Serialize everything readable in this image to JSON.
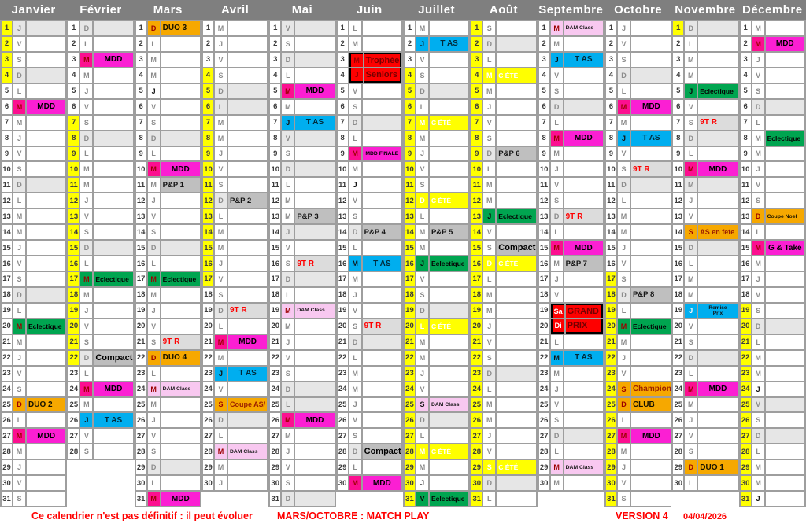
{
  "weekday_letters": [
    "L",
    "M",
    "M",
    "J",
    "V",
    "S",
    "D"
  ],
  "colors": {
    "header_bg": "#7f7f7f",
    "header_fg": "#ffffff",
    "grid_border": "#9e9e9e",
    "cell_bg": "#ffffff",
    "sunday_bg": "#e6e6e6",
    "holiday_number_bg": "#ffff00",
    "number_fg": "#3c3c3c",
    "letter_fg": "#8c8c8c",
    "footer_fg": "#ff0000"
  },
  "event_styles": {
    "mdd": {
      "bg": "#fb1fd3",
      "fg": "#000000",
      "lbg": "#fc0f90",
      "lfg": "#9c0000"
    },
    "mddf": {
      "bg": "#fb1fd3",
      "fg": "#000000",
      "lbg": "#fc0f90",
      "lfg": "#9c0000"
    },
    "gtake": {
      "bg": "#fb1fd3",
      "fg": "#000000",
      "lbg": "#fc0f90",
      "lfg": "#9c0000"
    },
    "tas": {
      "bg": "#00aeef",
      "fg": "#002a3a",
      "lbg": "#00aeef",
      "lfg": "#111111"
    },
    "remise": {
      "bg": "#00aeef",
      "fg": "#101010",
      "lbg": "#00aeef",
      "lfg": "#f5f5f5"
    },
    "ecl": {
      "bg": "#00a550",
      "fg": "#050505",
      "lbg": "#00a550",
      "lfg": "#9c0000"
    },
    "duo": {
      "bg": "#f6a800",
      "fg": "#161200",
      "lbg": "#f6a800",
      "lfg": "#9c0000"
    },
    "cnoel": {
      "bg": "#f6a800",
      "fg": "#161200",
      "lbg": "#f6a800",
      "lfg": "#9c0000"
    },
    "club": {
      "bg": "#f6a800",
      "fg": "#161200",
      "lbg": "#f6a800",
      "lfg": "#9c0000"
    },
    "champ": {
      "bg": "#f6a800",
      "fg": "#9c2000",
      "lbg": "#f6a800",
      "lfg": "#9c0000"
    },
    "asfete": {
      "bg": "#f6a800",
      "fg": "#9c2000",
      "lbg": "#f6a800",
      "lfg": "#9c0000"
    },
    "coupeas": {
      "bg": "#f6a800",
      "fg": "#9c2000",
      "lbg": "#f6a800",
      "lfg": "#9c0000"
    },
    "pnp": {
      "bg": "#bfbfbf",
      "fg": "#161616"
    },
    "cmp": {
      "bg": "#bdbdbd",
      "fg": "#000000"
    },
    "ntr": {
      "bg": "#dcdcdc",
      "fg": "#ff0000"
    },
    "dam": {
      "bg": "#f8c8f0",
      "fg": "#1a1a1a",
      "lbg": "#f8c8f0",
      "lfg": "#9c0000"
    },
    "cete": {
      "bg": "#ffff00",
      "fg": "#ffffff",
      "lbg": "#ffff00",
      "lfg": "#ffffff"
    },
    "red": {
      "bg": "#fe0000",
      "fg": "#750000",
      "lbg": "#fe0000",
      "lfg": "#9c0000"
    }
  },
  "months": [
    {
      "name": "Janvier",
      "days": 31,
      "start": 3,
      "yellow": [
        [
          1,
          4
        ]
      ],
      "gray_days": [
        1
      ],
      "bold_letters": [],
      "events": [
        {
          "d": 6,
          "t": "MDD",
          "s": "mdd"
        },
        {
          "d": 20,
          "t": "Eclectique",
          "s": "ecl"
        },
        {
          "d": 25,
          "t": "DUO 2",
          "s": "duo"
        },
        {
          "d": 27,
          "t": "MDD",
          "s": "mdd"
        }
      ]
    },
    {
      "name": "Février",
      "days": 28,
      "start": 6,
      "yellow": [
        [
          7,
          22
        ]
      ],
      "gray_days": [],
      "bold_letters": [],
      "events": [
        {
          "d": 3,
          "t": "MDD",
          "s": "mdd"
        },
        {
          "d": 17,
          "t": "Eclectique",
          "s": "ecl"
        },
        {
          "d": 22,
          "t": "Compact",
          "s": "cmp"
        },
        {
          "d": 24,
          "t": "MDD",
          "s": "mdd"
        },
        {
          "d": 26,
          "t": "T AS",
          "s": "tas"
        }
      ]
    },
    {
      "name": "Mars",
      "days": 31,
      "start": 6,
      "yellow": [],
      "gray_days": [],
      "bold_letters": [
        5
      ],
      "events": [
        {
          "d": 1,
          "t": "DUO 3",
          "s": "duo"
        },
        {
          "d": 10,
          "t": "MDD",
          "s": "mdd"
        },
        {
          "d": 11,
          "t": "P&P 1",
          "s": "pnp"
        },
        {
          "d": 17,
          "t": "Eclectique",
          "s": "ecl"
        },
        {
          "d": 21,
          "t": "9T R",
          "s": "ntr"
        },
        {
          "d": 22,
          "t": "DUO 4",
          "s": "duo"
        },
        {
          "d": 24,
          "t": "DAM Class",
          "s": "dam"
        },
        {
          "d": 31,
          "t": "MDD",
          "s": "mdd"
        }
      ]
    },
    {
      "name": "Avril",
      "days": 30,
      "start": 2,
      "yellow": [
        [
          4,
          17
        ]
      ],
      "gray_days": [
        6
      ],
      "bold_letters": [],
      "events": [
        {
          "d": 12,
          "t": "P&P 2",
          "s": "pnp"
        },
        {
          "d": 19,
          "t": "9T R",
          "s": "ntr"
        },
        {
          "d": 21,
          "t": "MDD",
          "s": "mdd"
        },
        {
          "d": 23,
          "t": "T AS",
          "s": "tas"
        },
        {
          "d": 25,
          "t": "Coupe AS/",
          "s": "coupeas"
        },
        {
          "d": 28,
          "t": "DAM Class",
          "s": "dam"
        }
      ]
    },
    {
      "name": "Mai",
      "days": 31,
      "start": 4,
      "yellow": [],
      "gray_days": [
        1,
        8,
        14,
        25
      ],
      "bold_letters": [],
      "events": [
        {
          "d": 5,
          "t": "MDD",
          "s": "mdd"
        },
        {
          "d": 7,
          "t": "T AS",
          "s": "tas"
        },
        {
          "d": 13,
          "t": "P&P 3",
          "s": "pnp"
        },
        {
          "d": 16,
          "t": "9T R",
          "s": "ntr"
        },
        {
          "d": 19,
          "t": "DAM Class",
          "s": "dam"
        },
        {
          "d": 26,
          "t": "MDD",
          "s": "mdd"
        }
      ]
    },
    {
      "name": "Juin",
      "days": 30,
      "start": 0,
      "yellow": [],
      "gray_days": [],
      "bold_letters": [
        11
      ],
      "events": [
        {
          "d": 3,
          "t": "Trophée",
          "s": "red",
          "blk": "top"
        },
        {
          "d": 4,
          "t": "Seniors",
          "s": "red",
          "blk": "bottom"
        },
        {
          "d": 9,
          "t": "MDD FINALE",
          "s": "mddf"
        },
        {
          "d": 14,
          "t": "P&P 4",
          "s": "pnp"
        },
        {
          "d": 16,
          "t": "T AS",
          "s": "tas"
        },
        {
          "d": 20,
          "t": "9T R",
          "s": "ntr"
        },
        {
          "d": 28,
          "t": "Compact",
          "s": "cmp"
        },
        {
          "d": 30,
          "t": "MDD",
          "s": "mdd"
        }
      ]
    },
    {
      "name": "Juillet",
      "days": 31,
      "start": 2,
      "yellow": [
        [
          4,
          31
        ]
      ],
      "gray_days": [],
      "bold_letters": [
        30
      ],
      "events": [
        {
          "d": 2,
          "t": "T AS",
          "s": "tas"
        },
        {
          "d": 7,
          "t": "C ÉTÉ",
          "s": "cete"
        },
        {
          "d": 12,
          "t": "C ÉTÉ",
          "s": "cete"
        },
        {
          "d": 14,
          "t": "P&P 5",
          "s": "pnp"
        },
        {
          "d": 16,
          "t": "Eclectique",
          "s": "ecl",
          "lfg": "#0a0a0a"
        },
        {
          "d": 20,
          "t": "C ÉTÉ",
          "s": "cete"
        },
        {
          "d": 25,
          "t": "DAM Class",
          "s": "dam",
          "lfg": "#1a1a1a"
        },
        {
          "d": 28,
          "t": "C ÉTÉ",
          "s": "cete"
        },
        {
          "d": 31,
          "t": "Eclectique",
          "s": "ecl",
          "lfg": "#0a0a0a"
        }
      ]
    },
    {
      "name": "Août",
      "days": 31,
      "start": 5,
      "yellow": [
        [
          1,
          31
        ]
      ],
      "gray_days": [],
      "bold_letters": [],
      "events": [
        {
          "d": 4,
          "t": "C ÉTÉ",
          "s": "cete"
        },
        {
          "d": 9,
          "t": "P&P 6",
          "s": "pnp"
        },
        {
          "d": 13,
          "t": "Eclectique",
          "s": "ecl",
          "lfg": "#0a0a0a"
        },
        {
          "d": 15,
          "t": "Compact",
          "s": "cmp"
        },
        {
          "d": 16,
          "t": "C ÉTÉ",
          "s": "cete"
        },
        {
          "d": 29,
          "t": "C ÉTÉ",
          "s": "cete"
        }
      ]
    },
    {
      "name": "Septembre",
      "days": 30,
      "start": 1,
      "yellow": [],
      "gray_days": [],
      "bold_letters": [],
      "events": [
        {
          "d": 1,
          "t": "DAM Class",
          "s": "dam"
        },
        {
          "d": 3,
          "t": "T AS",
          "s": "tas"
        },
        {
          "d": 8,
          "t": "MDD",
          "s": "mdd"
        },
        {
          "d": 13,
          "t": "9T R",
          "s": "ntr"
        },
        {
          "d": 15,
          "t": "MDD",
          "s": "mdd"
        },
        {
          "d": 16,
          "t": "P&P 7",
          "s": "pnp"
        },
        {
          "d": 19,
          "t": "GRAND",
          "s": "red",
          "l": "Sa",
          "lfg": "#ffffff",
          "blk": "top"
        },
        {
          "d": 20,
          "t": "PRIX",
          "s": "red",
          "l": "Di",
          "lfg": "#ffffff",
          "blk": "bottom"
        },
        {
          "d": 22,
          "t": "T AS",
          "s": "tas"
        },
        {
          "d": 29,
          "t": "DAM Class",
          "s": "dam"
        }
      ]
    },
    {
      "name": "Octobre",
      "days": 31,
      "start": 3,
      "yellow": [
        [
          17,
          31
        ]
      ],
      "gray_days": [],
      "bold_letters": [],
      "events": [
        {
          "d": 6,
          "t": "MDD",
          "s": "mdd"
        },
        {
          "d": 8,
          "t": "T AS",
          "s": "tas"
        },
        {
          "d": 10,
          "t": "9T R",
          "s": "ntr"
        },
        {
          "d": 18,
          "t": "P&P 8",
          "s": "pnp"
        },
        {
          "d": 20,
          "t": "Eclectique",
          "s": "ecl"
        },
        {
          "d": 24,
          "t": "Champion",
          "s": "champ"
        },
        {
          "d": 25,
          "t": "CLUB",
          "s": "club"
        },
        {
          "d": 27,
          "t": "MDD",
          "s": "mdd"
        }
      ]
    },
    {
      "name": "Novembre",
      "days": 30,
      "start": 6,
      "yellow": [
        [
          1,
          1
        ]
      ],
      "gray_days": [
        11
      ],
      "bold_letters": [],
      "events": [
        {
          "d": 5,
          "t": "Eclectique",
          "s": "ecl",
          "lfg": "#0a0a0a"
        },
        {
          "d": 7,
          "t": "9T R",
          "s": "ntr"
        },
        {
          "d": 10,
          "t": "MDD",
          "s": "mdd"
        },
        {
          "d": 14,
          "t": "AS en fete",
          "s": "asfete"
        },
        {
          "d": 19,
          "t": "Remise\nPrix",
          "s": "remise"
        },
        {
          "d": 24,
          "t": "MDD",
          "s": "mdd"
        },
        {
          "d": 29,
          "t": "DUO 1",
          "s": "duo"
        }
      ]
    },
    {
      "name": "Décembre",
      "days": 31,
      "start": 1,
      "yellow": [
        [
          19,
          31
        ]
      ],
      "gray_days": [
        25
      ],
      "bold_letters": [
        24,
        31
      ],
      "events": [
        {
          "d": 2,
          "t": "MDD",
          "s": "mdd"
        },
        {
          "d": 8,
          "t": "Eclectique",
          "s": "ecl",
          "lplain": true
        },
        {
          "d": 13,
          "t": "Coupe Noel",
          "s": "cnoel"
        },
        {
          "d": 15,
          "t": "G & Take",
          "s": "gtake"
        }
      ]
    }
  ],
  "footer": {
    "disclaimer": "Ce calendrier n'est pas définitif : il peut évoluer",
    "matchplay": "MARS/OCTOBRE : MATCH PLAY",
    "version": "VERSION 4",
    "date": "04/04/2026"
  }
}
